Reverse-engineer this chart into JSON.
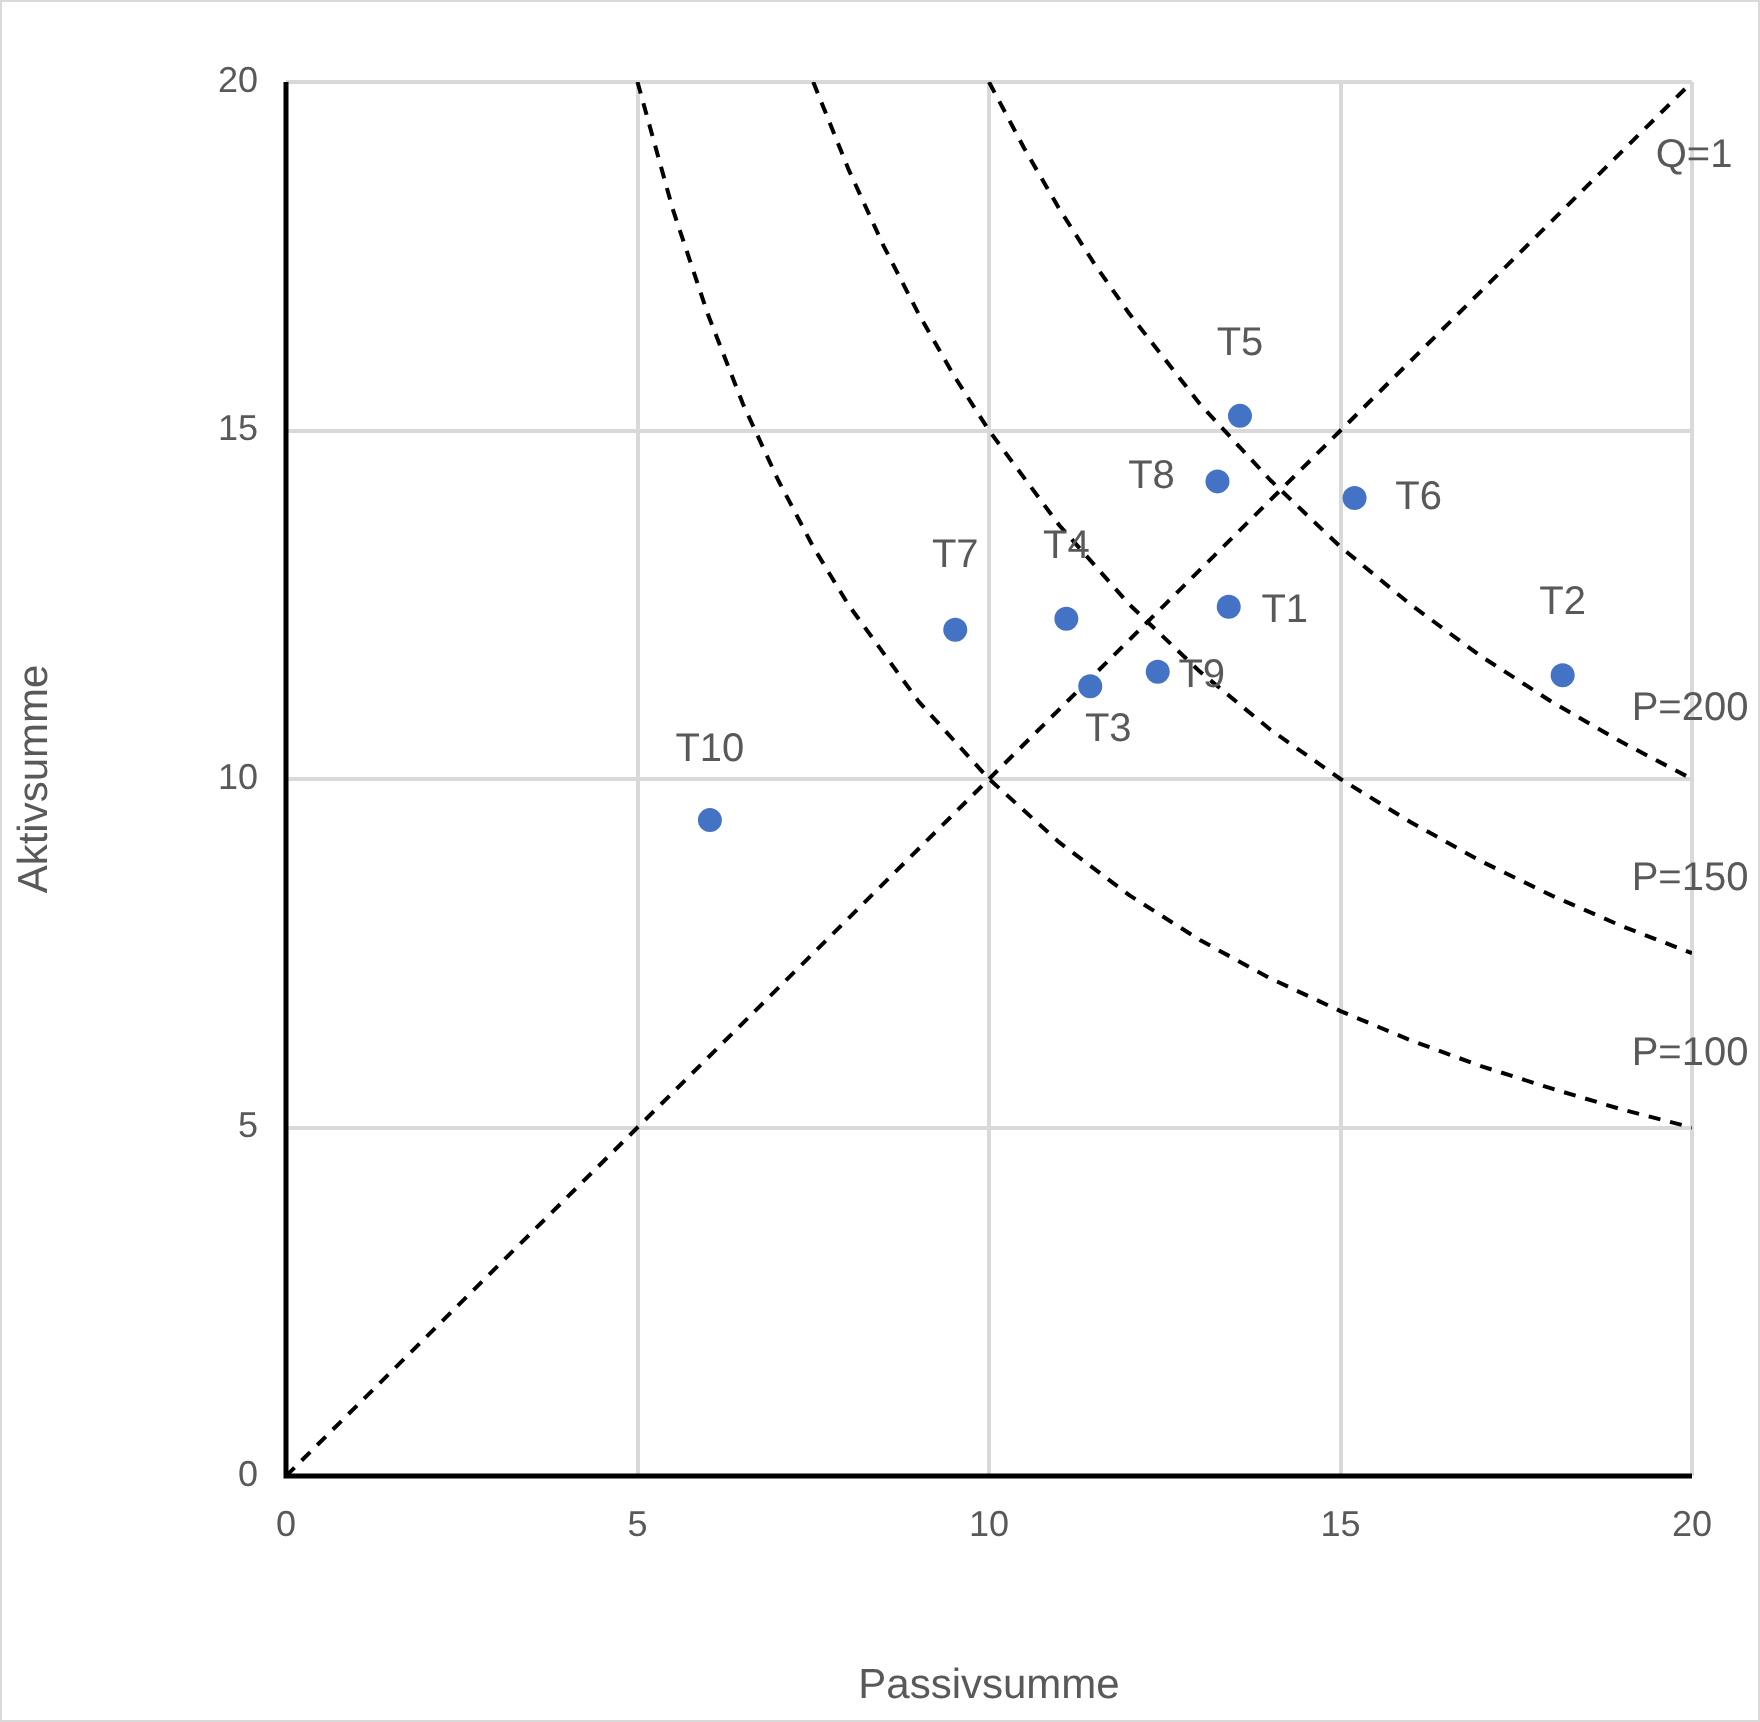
{
  "chart_data": {
    "type": "scatter",
    "xlabel": "Passivsumme",
    "ylabel": "Aktivsumme",
    "xlim": [
      0,
      20
    ],
    "ylim": [
      0,
      20
    ],
    "xticks": [
      0,
      5,
      10,
      15,
      20
    ],
    "yticks": [
      0,
      5,
      10,
      15,
      20
    ],
    "grid": true,
    "legend": false,
    "series": [
      {
        "color": "#4472c4",
        "marker": "circle",
        "x": [
          13.41,
          18.16,
          11.44,
          11.1,
          13.57,
          15.2,
          9.52,
          13.25,
          12.4,
          6.03
        ],
        "values": [
          12.47,
          11.49,
          11.33,
          12.3,
          15.21,
          14.03,
          12.14,
          14.27,
          11.54,
          9.41
        ]
      },
      {
        "type": "line",
        "color": "#000000",
        "line_style": "dashed",
        "marker": "none",
        "x": [
          0,
          20
        ],
        "values": [
          0,
          20
        ]
      },
      {
        "type": "line",
        "color": "#000000",
        "line_style": "dashed",
        "marker": "none",
        "x": [
          5,
          5.5,
          6,
          6.5,
          7,
          7.5,
          8,
          9,
          10,
          11,
          12,
          13,
          14,
          15,
          16,
          17,
          18,
          19,
          20
        ],
        "values": [
          20,
          18.18,
          16.67,
          15.38,
          14.29,
          13.33,
          12.5,
          11.11,
          10,
          9.09,
          8.33,
          7.69,
          7.14,
          6.67,
          6.25,
          5.88,
          5.56,
          5.26,
          5
        ]
      },
      {
        "type": "line",
        "color": "#000000",
        "line_style": "dashed",
        "marker": "none",
        "x": [
          7.5,
          8,
          8.5,
          9,
          9.5,
          10,
          11,
          12,
          13,
          14,
          15,
          16,
          17,
          18,
          19,
          20
        ],
        "values": [
          20,
          18.75,
          17.65,
          16.67,
          15.79,
          15,
          13.64,
          12.5,
          11.54,
          10.71,
          10,
          9.38,
          8.82,
          8.33,
          7.89,
          7.5
        ]
      },
      {
        "type": "line",
        "color": "#000000",
        "line_style": "dashed",
        "marker": "none",
        "x": [
          10,
          10.5,
          11,
          11.5,
          12,
          13,
          14,
          15,
          16,
          17,
          18,
          19,
          20
        ],
        "values": [
          20,
          19.05,
          18.18,
          17.39,
          16.67,
          15.38,
          14.29,
          13.33,
          12.5,
          11.76,
          11.11,
          10.53,
          10
        ]
      }
    ],
    "annotations": [
      {
        "text": "T1",
        "x": 13.41,
        "y": 12.47
      },
      {
        "text": "T2",
        "x": 18.16,
        "y": 11.49
      },
      {
        "text": "T3",
        "x": 11.44,
        "y": 11.33
      },
      {
        "text": "T4",
        "x": 11.1,
        "y": 12.3
      },
      {
        "text": "T5",
        "x": 13.57,
        "y": 15.21
      },
      {
        "text": "T6",
        "x": 15.2,
        "y": 14.03
      },
      {
        "text": "T7",
        "x": 9.52,
        "y": 12.14
      },
      {
        "text": "T8",
        "x": 13.25,
        "y": 14.27
      },
      {
        "text": "T9",
        "x": 12.4,
        "y": 11.54
      },
      {
        "text": "T10",
        "x": 6.03,
        "y": 9.41
      },
      {
        "text": "Q=1",
        "x": 20,
        "y": 20
      },
      {
        "text": "P=200",
        "x": 20,
        "y": 10
      },
      {
        "text": "P=150",
        "x": 20,
        "y": 7.5
      },
      {
        "text": "P=100",
        "x": 20,
        "y": 5
      }
    ]
  }
}
